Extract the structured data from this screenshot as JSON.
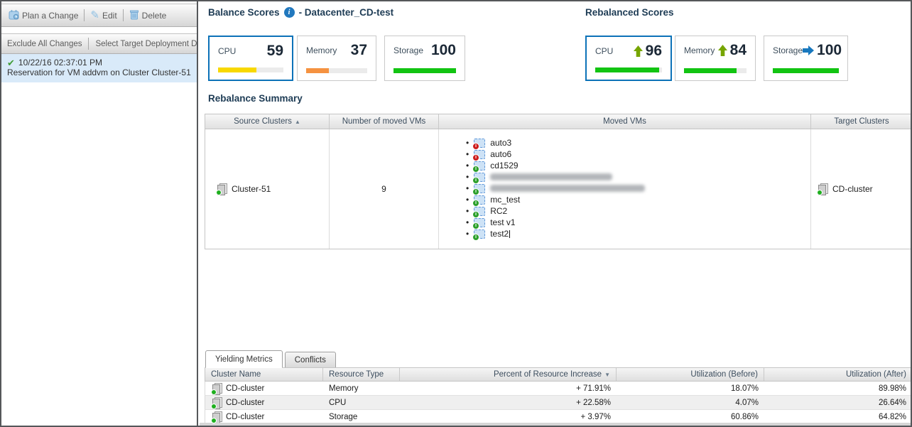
{
  "icons": {
    "sort_asc": "▲",
    "sort_desc": "▼",
    "info": "i",
    "check": "✔",
    "pencil": "✎"
  },
  "colors": {
    "selected_card_border": "#0c72b8",
    "cpu_bar": "#f8d800",
    "memory_bar": "#f59240",
    "storage_bar": "#12c412",
    "rebalanced_bar": "#12c412",
    "up_arrow": "#76a500",
    "right_arrow": "#1878be"
  },
  "sidebar": {
    "toolbar1": {
      "plan_label": "Plan a Change",
      "edit_label": "Edit",
      "delete_label": "Delete"
    },
    "toolbar2": {
      "exclude_label": "Exclude All Changes",
      "select_target_label": "Select Target Deployment Da"
    },
    "plan_item": {
      "timestamp": "10/22/16 02:37:01 PM",
      "description": "Reservation for VM addvm on Cluster Cluster-51"
    }
  },
  "balance": {
    "title": "Balance Scores",
    "subtitle": "- Datacenter_CD-test",
    "cards": [
      {
        "label": "CPU",
        "value": "59",
        "pct": 59
      },
      {
        "label": "Memory",
        "value": "37",
        "pct": 37
      },
      {
        "label": "Storage",
        "value": "100",
        "pct": 100
      }
    ]
  },
  "rebalanced": {
    "title": "Rebalanced Scores",
    "cards": [
      {
        "label": "CPU",
        "value": "96",
        "pct": 96,
        "trend": "up"
      },
      {
        "label": "Memory",
        "value": "84",
        "pct": 84,
        "trend": "up"
      },
      {
        "label": "Storage",
        "value": "100",
        "pct": 100,
        "trend": "flat"
      }
    ]
  },
  "summary": {
    "title": "Rebalance Summary",
    "columns": [
      "Source Clusters",
      "Number of moved VMs",
      "Moved VMs",
      "Target Clusters"
    ],
    "row": {
      "source_cluster": "Cluster-51",
      "moved_count": "9",
      "target_cluster": "CD-cluster",
      "vms": [
        {
          "name": "auto3",
          "state": "off"
        },
        {
          "name": "auto6",
          "state": "off"
        },
        {
          "name": "cd1529",
          "state": "on"
        },
        {
          "name": "",
          "state": "on",
          "redacted": true
        },
        {
          "name": "",
          "state": "on",
          "redacted": true
        },
        {
          "name": "mc_test",
          "state": "on"
        },
        {
          "name": "RC2",
          "state": "on"
        },
        {
          "name": "test v1",
          "state": "on"
        },
        {
          "name": "test2",
          "state": "on"
        }
      ]
    }
  },
  "bottom": {
    "tabs": [
      {
        "label": "Yielding Metrics",
        "active": true
      },
      {
        "label": "Conflicts",
        "active": false
      }
    ],
    "columns": [
      "Cluster Name",
      "Resource Type",
      "Percent of Resource Increase",
      "Utilization (Before)",
      "Utilization (After)"
    ],
    "rows": [
      {
        "cluster": "CD-cluster",
        "resource": "Memory",
        "increase": "+ 71.91%",
        "before": "18.07%",
        "after": "89.98%"
      },
      {
        "cluster": "CD-cluster",
        "resource": "CPU",
        "increase": "+ 22.58%",
        "before": "4.07%",
        "after": "26.64%"
      },
      {
        "cluster": "CD-cluster",
        "resource": "Storage",
        "increase": "+ 3.97%",
        "before": "60.86%",
        "after": "64.82%"
      }
    ]
  }
}
